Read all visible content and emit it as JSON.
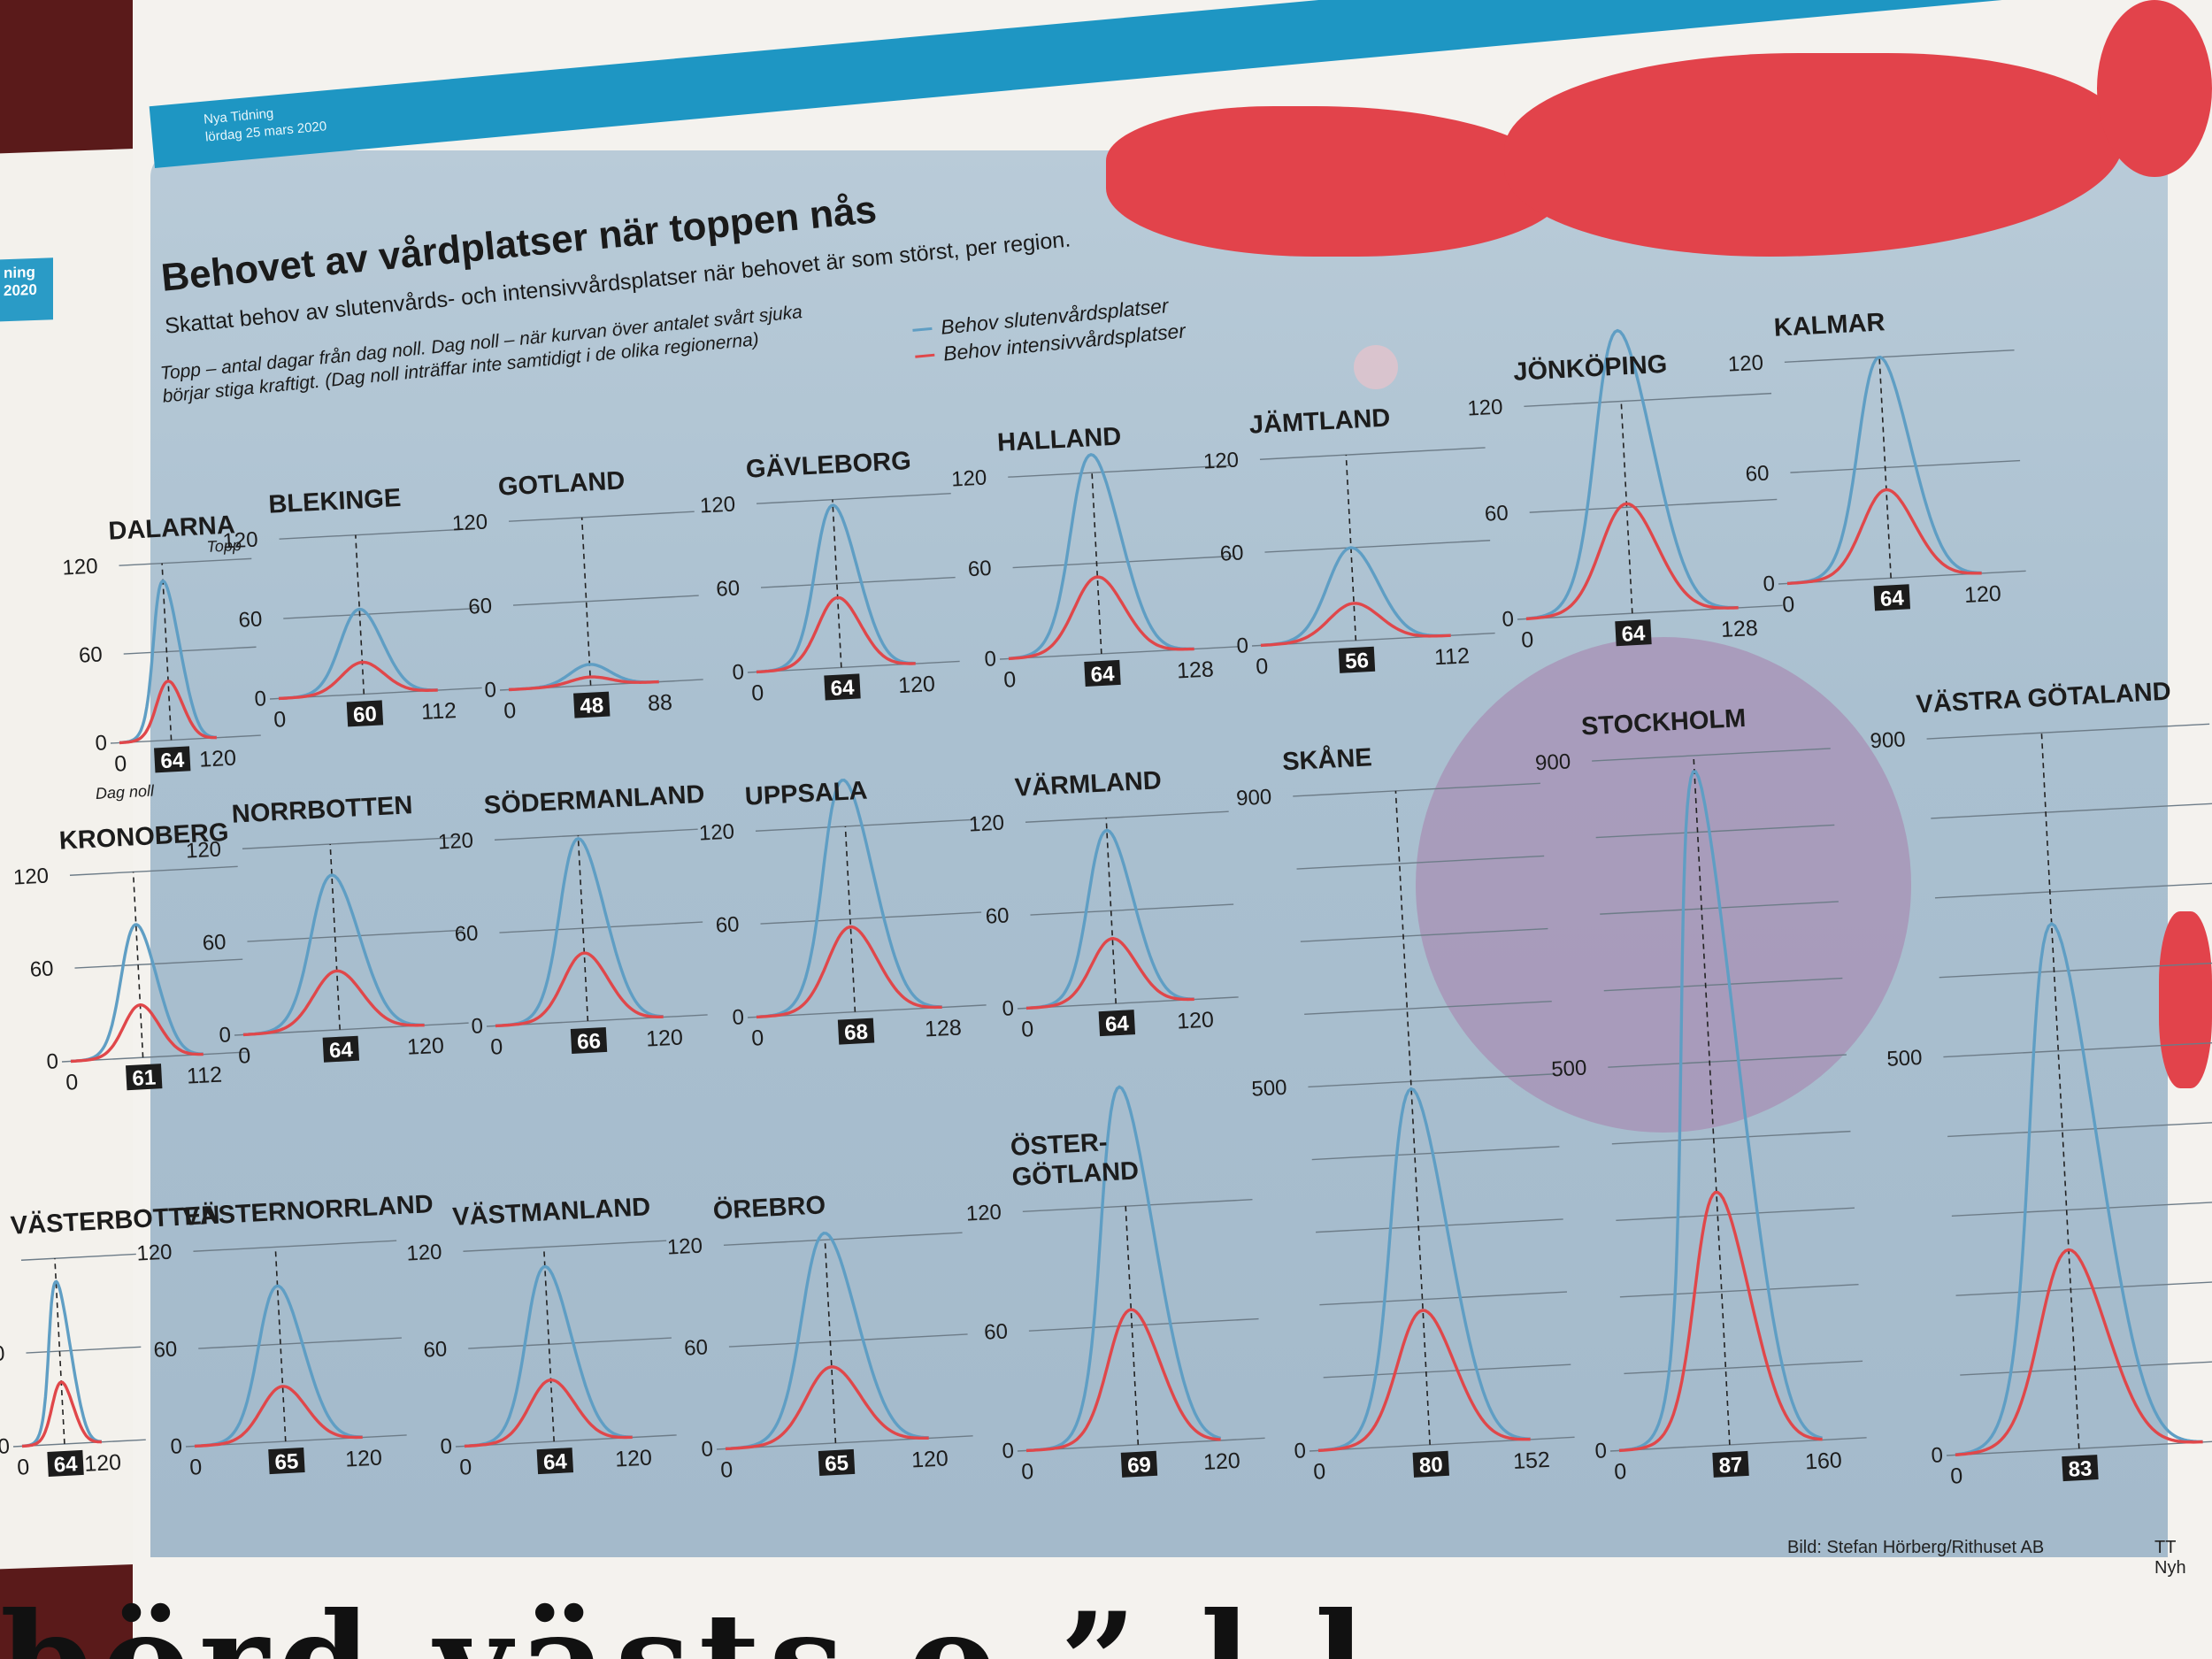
{
  "left_page": {
    "tag": "ning\n2020"
  },
  "masthead": {
    "paper": "Nya Tidning",
    "date": "lördag 25 mars 2020"
  },
  "title": "Behovet av vårdplatser när toppen nås",
  "subtitle": "Skattat behov av slutenvårds- och intensivvårdsplatser när behovet är som störst, per region.",
  "note_line1": "Topp – antal dagar från dag noll. Dag noll – när kurvan över antalet svårt sjuka",
  "note_line2": "börjar stiga kraftigt. (Dag noll inträffar inte samtidigt i de olika regionerna)",
  "legend": {
    "blue_label": "Behov slutenvårdsplatser",
    "red_label": "Behov intensivvårdsplatser"
  },
  "colors": {
    "blue": "#5f9ec4",
    "red": "#e0474a",
    "panel": "#afc3d2",
    "virus_red": "#e2434b",
    "virus_purple": "#a889b0"
  },
  "dalarna_labels": {
    "topp": "Topp",
    "dag_noll": "Dag noll"
  },
  "credit": "Bild: Stefan Hörberg/Rithuset AB",
  "credit2": "TT Nyh",
  "headline_fragment": "börd västs o ” l     l",
  "chart_data": [
    {
      "type": "line",
      "region": "DALARNA",
      "x_start": "0",
      "x_end": "120",
      "peak_day": 64,
      "yticks": [
        "120",
        "60",
        "0"
      ],
      "ymax": 120,
      "blue_peak": 108,
      "red_peak": 40
    },
    {
      "type": "line",
      "region": "BLEKINGE",
      "x_start": "0",
      "x_end": "112",
      "peak_day": 60,
      "yticks": [
        "120",
        "60",
        "0"
      ],
      "ymax": 120,
      "blue_peak": 64,
      "red_peak": 24
    },
    {
      "type": "line",
      "region": "GOTLAND",
      "x_start": "0",
      "x_end": "88",
      "peak_day": 48,
      "yticks": [
        "120",
        "60",
        "0"
      ],
      "ymax": 120,
      "blue_peak": 15,
      "red_peak": 6
    },
    {
      "type": "line",
      "region": "GÄVLEBORG",
      "x_start": "0",
      "x_end": "120",
      "peak_day": 64,
      "yticks": [
        "120",
        "60",
        "0"
      ],
      "ymax": 120,
      "blue_peak": 116,
      "red_peak": 50
    },
    {
      "type": "line",
      "region": "HALLAND",
      "x_start": "0",
      "x_end": "128",
      "peak_day": 64,
      "yticks": [
        "120",
        "60",
        "0"
      ],
      "ymax": 120,
      "blue_peak": 132,
      "red_peak": 51
    },
    {
      "type": "line",
      "region": "JÄMTLAND",
      "x_start": "0",
      "x_end": "112",
      "peak_day": 56,
      "yticks": [
        "120",
        "60",
        "0"
      ],
      "ymax": 120,
      "blue_peak": 60,
      "red_peak": 24
    },
    {
      "type": "line",
      "region": "JÖNKÖPING",
      "x_start": "0",
      "x_end": "128",
      "peak_day": 64,
      "yticks": [
        "120",
        "60",
        "0"
      ],
      "ymax": 120,
      "blue_peak": 160,
      "red_peak": 62
    },
    {
      "type": "line",
      "region": "KALMAR",
      "x_start": "0",
      "x_end": "120",
      "peak_day": 64,
      "yticks": [
        "120",
        "60",
        "0"
      ],
      "ymax": 120,
      "blue_peak": 120,
      "red_peak": 48
    },
    {
      "type": "line",
      "region": "KRONOBERG",
      "x_start": "0",
      "x_end": "112",
      "peak_day": 61,
      "yticks": [
        "120",
        "60",
        "0"
      ],
      "ymax": 120,
      "blue_peak": 86,
      "red_peak": 34
    },
    {
      "type": "line",
      "region": "NORRBOTTEN",
      "x_start": "0",
      "x_end": "120",
      "peak_day": 64,
      "yticks": [
        "120",
        "60",
        "0"
      ],
      "ymax": 120,
      "blue_peak": 100,
      "red_peak": 38
    },
    {
      "type": "line",
      "region": "SÖDERMANLAND",
      "x_start": "0",
      "x_end": "120",
      "peak_day": 66,
      "yticks": [
        "120",
        "60",
        "0"
      ],
      "ymax": 120,
      "blue_peak": 118,
      "red_peak": 44
    },
    {
      "type": "line",
      "region": "UPPSALA",
      "x_start": "0",
      "x_end": "128",
      "peak_day": 68,
      "yticks": [
        "120",
        "60",
        "0"
      ],
      "ymax": 120,
      "blue_peak": 150,
      "red_peak": 55
    },
    {
      "type": "line",
      "region": "VÄRMLAND",
      "x_start": "0",
      "x_end": "120",
      "peak_day": 64,
      "yticks": [
        "120",
        "60",
        "0"
      ],
      "ymax": 120,
      "blue_peak": 112,
      "red_peak": 42
    },
    {
      "type": "line",
      "region": "SKÅNE",
      "x_start": "0",
      "x_end": "152",
      "peak_day": 80,
      "yticks": [
        "900",
        "500",
        "0"
      ],
      "ymax": 900,
      "blue_peak": 490,
      "red_peak": 185
    },
    {
      "type": "line",
      "region": "STOCKHOLM",
      "x_start": "0",
      "x_end": "160",
      "peak_day": 87,
      "yticks": [
        "900",
        "500",
        "0"
      ],
      "ymax": 900,
      "blue_peak": 880,
      "red_peak": 330
    },
    {
      "type": "line",
      "region": "VÄSTRA GÖTALAND",
      "x_start": "0",
      "x_end": "",
      "peak_day": 83,
      "yticks": [
        "900",
        "500",
        "0"
      ],
      "ymax": 900,
      "blue_peak": 660,
      "red_peak": 250
    },
    {
      "type": "line",
      "region": "VÄSTERBOTTEN",
      "x_start": "0",
      "x_end": "120",
      "peak_day": 64,
      "yticks": [
        "120",
        "60",
        "0"
      ],
      "ymax": 120,
      "blue_peak": 105,
      "red_peak": 40
    },
    {
      "type": "line",
      "region": "VÄSTERNORRLAND",
      "x_start": "0",
      "x_end": "120",
      "peak_day": 65,
      "yticks": [
        "120",
        "60",
        "0"
      ],
      "ymax": 120,
      "blue_peak": 96,
      "red_peak": 34
    },
    {
      "type": "line",
      "region": "VÄSTMANLAND",
      "x_start": "0",
      "x_end": "120",
      "peak_day": 64,
      "yticks": [
        "120",
        "60",
        "0"
      ],
      "ymax": 120,
      "blue_peak": 108,
      "red_peak": 38
    },
    {
      "type": "line",
      "region": "ÖREBRO",
      "x_start": "0",
      "x_end": "120",
      "peak_day": 65,
      "yticks": [
        "120",
        "60",
        "0"
      ],
      "ymax": 120,
      "blue_peak": 124,
      "red_peak": 45
    },
    {
      "type": "line",
      "region": "ÖSTER-\nGÖTLAND",
      "x_start": "0",
      "x_end": "120",
      "peak_day": 69,
      "yticks": [
        "120",
        "60",
        "0"
      ],
      "ymax": 120,
      "blue_peak": 180,
      "red_peak": 68
    }
  ]
}
